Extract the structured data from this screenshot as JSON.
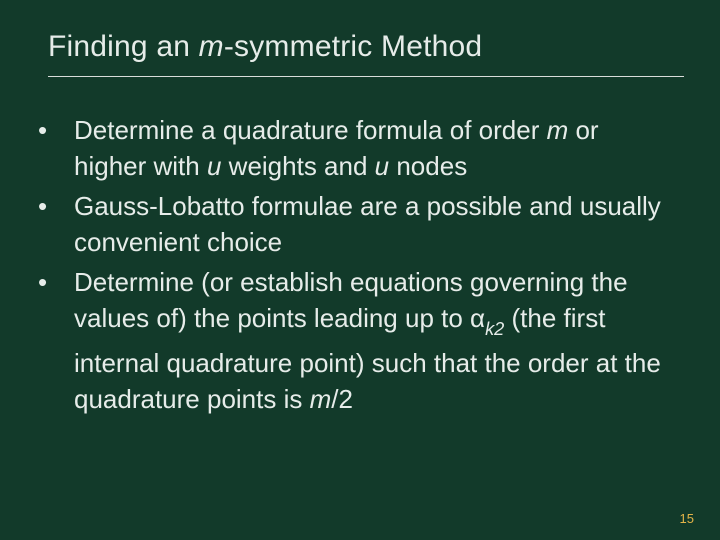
{
  "slide": {
    "background_color": "#123a2a",
    "text_color": "#e6ece9",
    "accent_color": "#e3b448",
    "title_fontsize": 30,
    "body_fontsize": 26,
    "line_height": 36,
    "title": {
      "pre": "Finding an ",
      "m": "m",
      "post": "-symmetric Method"
    },
    "bullets": [
      {
        "segments": {
          "a": "Determine a quadrature formula of order ",
          "m": "m",
          "b": "  or higher with  ",
          "u1": "u",
          "c": "  weights and  ",
          "u2": "u",
          "d": "  nodes"
        }
      },
      {
        "text": "Gauss-Lobatto formulae are a possible and usually convenient choice"
      },
      {
        "segments": {
          "a": "Determine (or establish equations governing the values of) the points leading up to ",
          "alpha": "α",
          "sub": "k2",
          "b": "  (the first internal quadrature point) such that the order at the quadrature points is  ",
          "m": "m",
          "c": "/2"
        }
      }
    ],
    "page_number": "15"
  }
}
